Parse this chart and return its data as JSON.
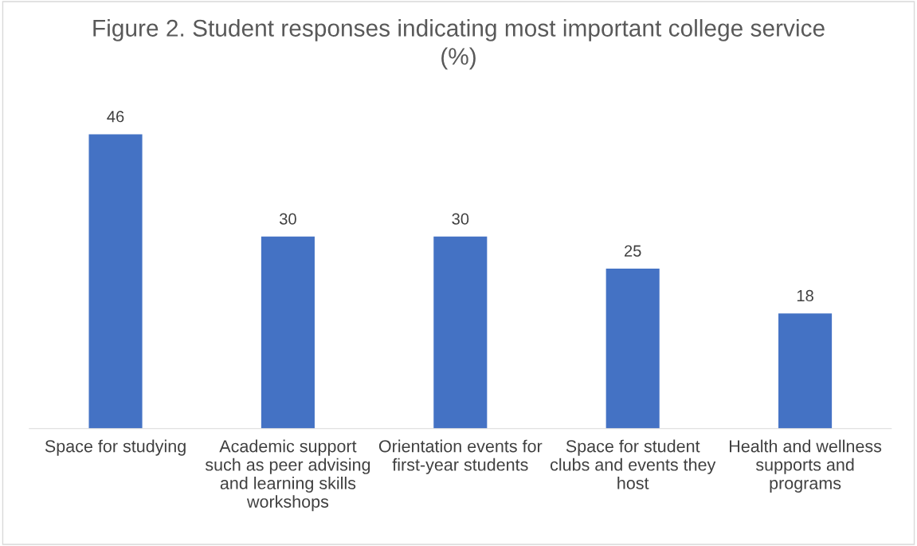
{
  "chart_data": {
    "type": "bar",
    "title": "Figure 2. Student responses indicating most important college service\n(%)",
    "categories": [
      "Space for studying",
      "Academic support\nsuch as peer advising\nand learning skills\nworkshops",
      "Orientation events for\nfirst-year students",
      "Space for student\nclubs and events they\nhost",
      "Health and wellness\nsupports and\nprograms"
    ],
    "values": [
      46,
      30,
      30,
      25,
      18
    ],
    "color": "#4472c4",
    "data_labels": true
  }
}
